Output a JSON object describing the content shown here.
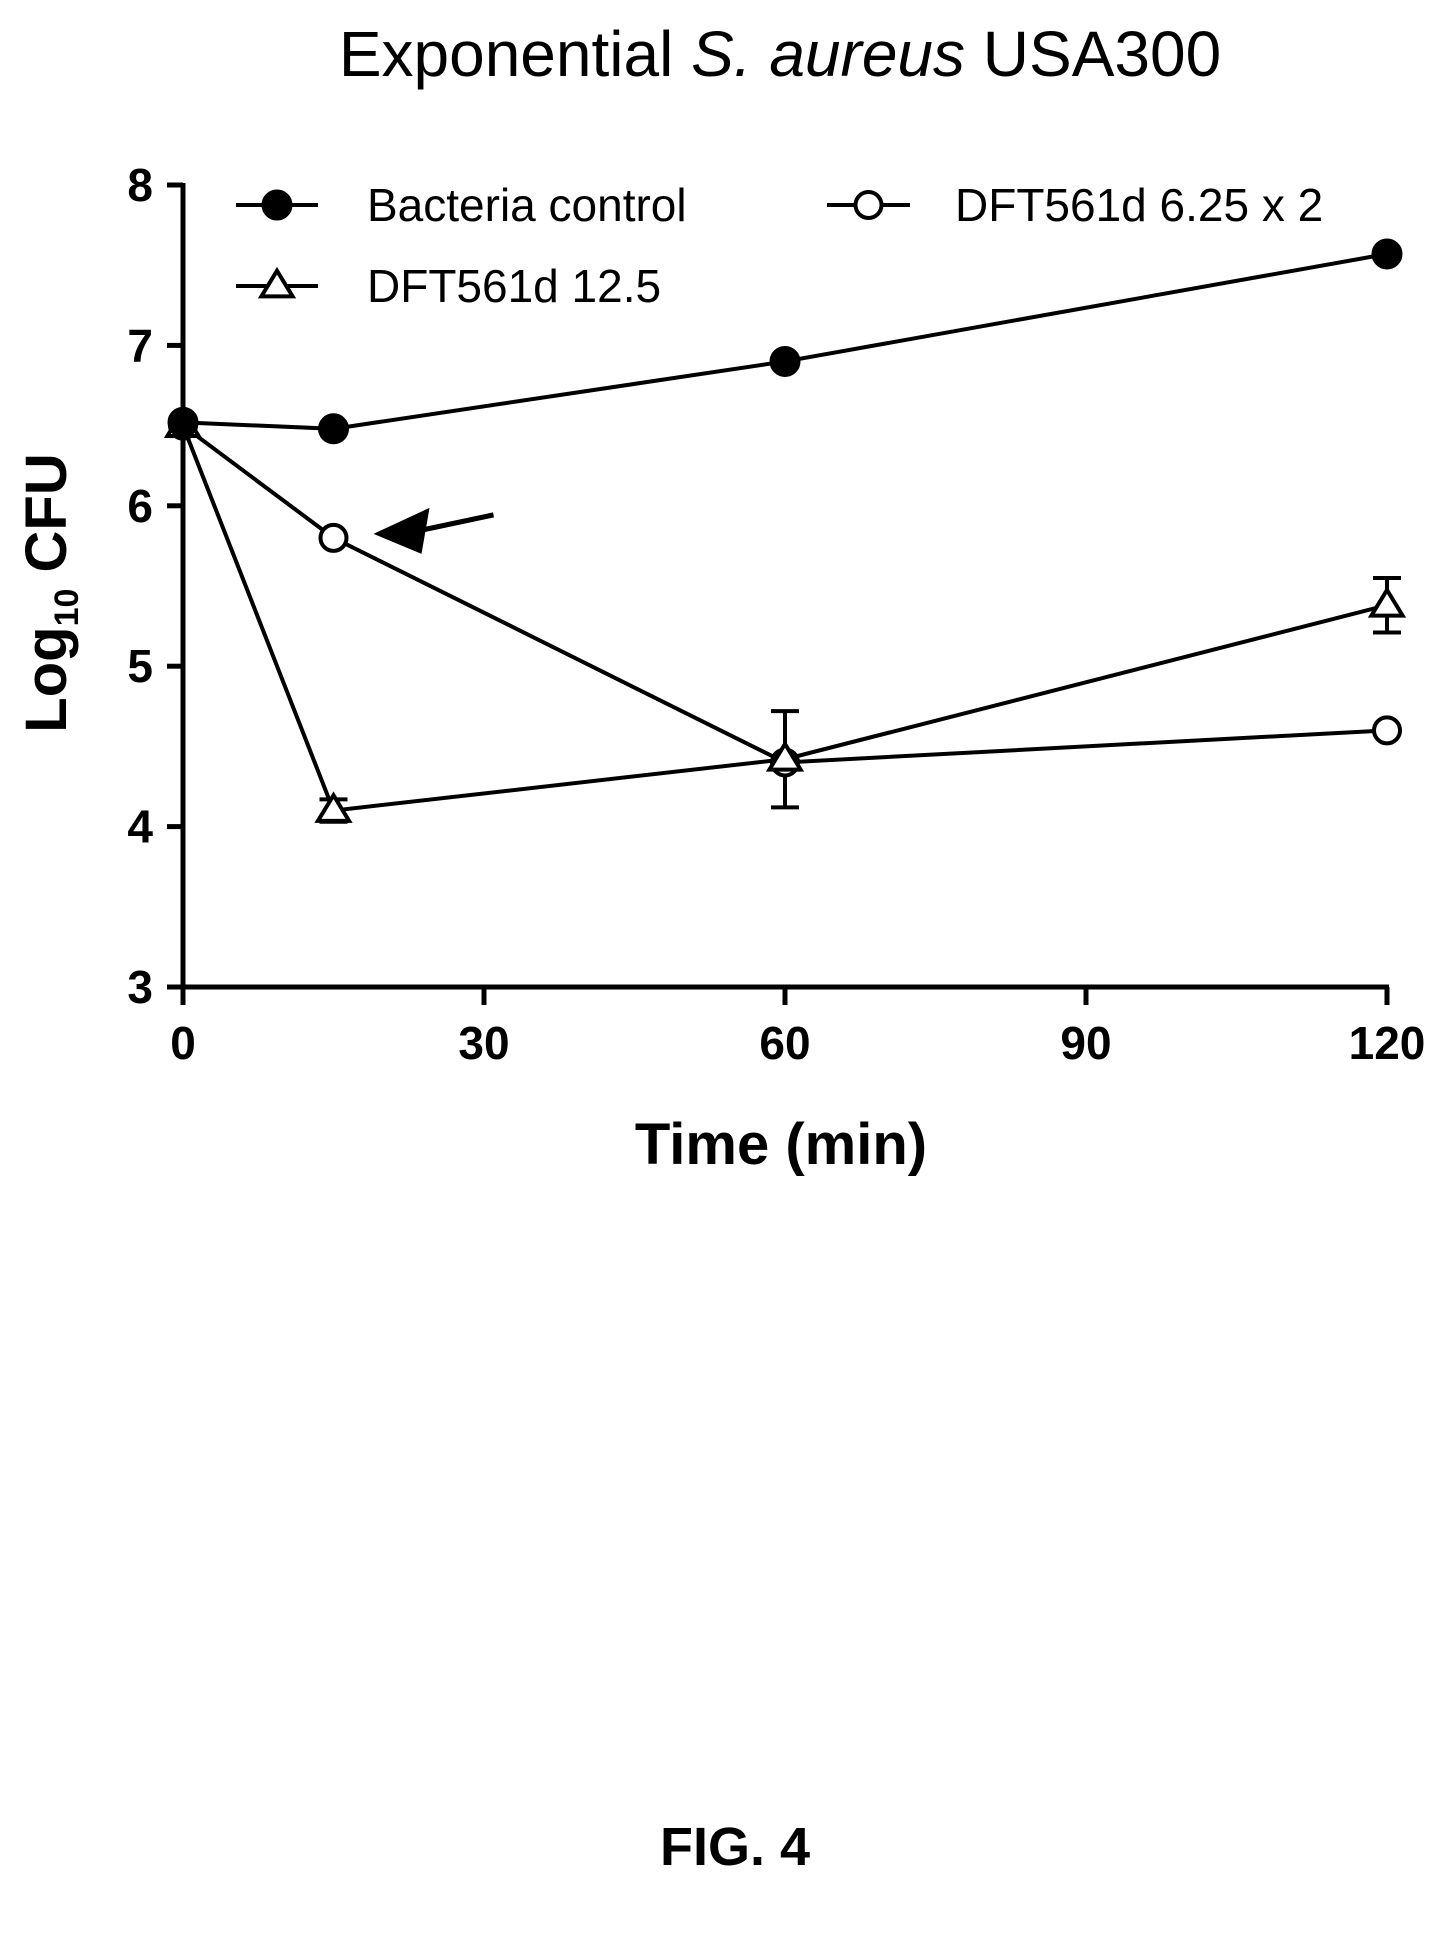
{
  "figure_caption": "FIG. 4",
  "chart_data": {
    "type": "line",
    "title": {
      "prefix": "Exponential ",
      "italic": "S. aureus",
      "suffix": " USA300"
    },
    "xlabel": "Time (min)",
    "ylabel": {
      "base": "Log",
      "subscript": "10",
      "rest": " CFU"
    },
    "xlim": [
      0,
      120
    ],
    "ylim": [
      3,
      8
    ],
    "xticks": [
      0,
      30,
      60,
      90,
      120
    ],
    "yticks": [
      3,
      4,
      5,
      6,
      7,
      8
    ],
    "grid": false,
    "legend_position": "top",
    "series": [
      {
        "name": "Bacteria control",
        "marker": "filled-circle",
        "x": [
          0,
          15,
          60,
          120
        ],
        "y": [
          6.52,
          6.48,
          6.9,
          7.57
        ]
      },
      {
        "name": "DFT561d 6.25 x 2",
        "marker": "open-circle",
        "x": [
          0,
          15,
          60,
          120
        ],
        "y": [
          6.5,
          5.8,
          4.4,
          4.6
        ]
      },
      {
        "name": "DFT561d 12.5",
        "marker": "open-triangle",
        "x": [
          0,
          15,
          60,
          120
        ],
        "y": [
          6.5,
          4.1,
          4.42,
          5.38
        ],
        "err": [
          0,
          0.07,
          0.3,
          0.17
        ]
      }
    ],
    "annotation": {
      "type": "arrow",
      "points_to": {
        "series": "DFT561d 6.25 x 2",
        "x": 15,
        "y": 5.8
      }
    }
  }
}
